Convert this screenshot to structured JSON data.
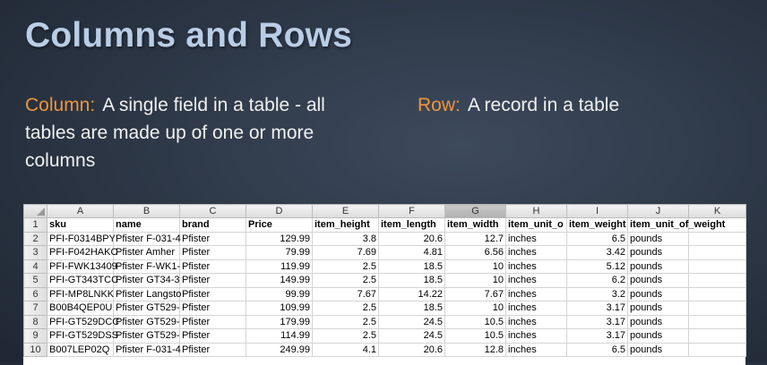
{
  "slide": {
    "title": "Columns and Rows",
    "column_term": "Column:",
    "column_text": "A single field in a table - all tables are made up of one or more columns",
    "row_term": "Row:",
    "row_text": "A record in a table"
  },
  "spreadsheet": {
    "column_letters": [
      "A",
      "B",
      "C",
      "D",
      "E",
      "F",
      "G",
      "H",
      "I",
      "J",
      "K"
    ],
    "selected_column": "G",
    "row_numbers": [
      "1",
      "2",
      "3",
      "4",
      "5",
      "6",
      "7",
      "8",
      "9",
      "10"
    ],
    "rows": [
      [
        "sku",
        "name",
        "brand",
        "Price",
        "item_height",
        "item_length",
        "item_width",
        "item_unit_o",
        "item_weight",
        "item_unit_of_weight",
        ""
      ],
      [
        "PFI-F0314BPY",
        "Pfister F-031-4",
        "Pfister",
        "129.99",
        "3.8",
        "20.6",
        "12.7",
        "inches",
        "6.5",
        "pounds",
        ""
      ],
      [
        "PFI-F042HAKC",
        "Pfister Amher",
        "Pfister",
        "79.99",
        "7.69",
        "4.81",
        "6.56",
        "inches",
        "3.42",
        "pounds",
        ""
      ],
      [
        "PFI-FWK13409",
        "Pfister F-WK1-",
        "Pfister",
        "119.99",
        "2.5",
        "18.5",
        "10",
        "inches",
        "5.12",
        "pounds",
        ""
      ],
      [
        "PFI-GT343TCC",
        "Pfister GT34-3",
        "Pfister",
        "149.99",
        "2.5",
        "18.5",
        "10",
        "inches",
        "6.2",
        "pounds",
        ""
      ],
      [
        "PFI-MP8LNKK",
        "Pfister Langsto",
        "Pfister",
        "99.99",
        "7.67",
        "14.22",
        "7.67",
        "inches",
        "3.2",
        "pounds",
        ""
      ],
      [
        "B00B4QEP0U",
        "Pfister GT529-",
        "Pfister",
        "109.99",
        "2.5",
        "18.5",
        "10",
        "inches",
        "3.17",
        "pounds",
        ""
      ],
      [
        "PFI-GT529DCC",
        "Pfister GT529-",
        "Pfister",
        "179.99",
        "2.5",
        "24.5",
        "10.5",
        "inches",
        "3.17",
        "pounds",
        ""
      ],
      [
        "PFI-GT529DSS",
        "Pfister GT529-",
        "Pfister",
        "114.99",
        "2.5",
        "24.5",
        "10.5",
        "inches",
        "3.17",
        "pounds",
        ""
      ],
      [
        "B007LEP02Q",
        "Pfister F-031-4",
        "Pfister",
        "249.99",
        "4.1",
        "20.6",
        "12.8",
        "inches",
        "6.5",
        "pounds",
        ""
      ]
    ]
  }
}
